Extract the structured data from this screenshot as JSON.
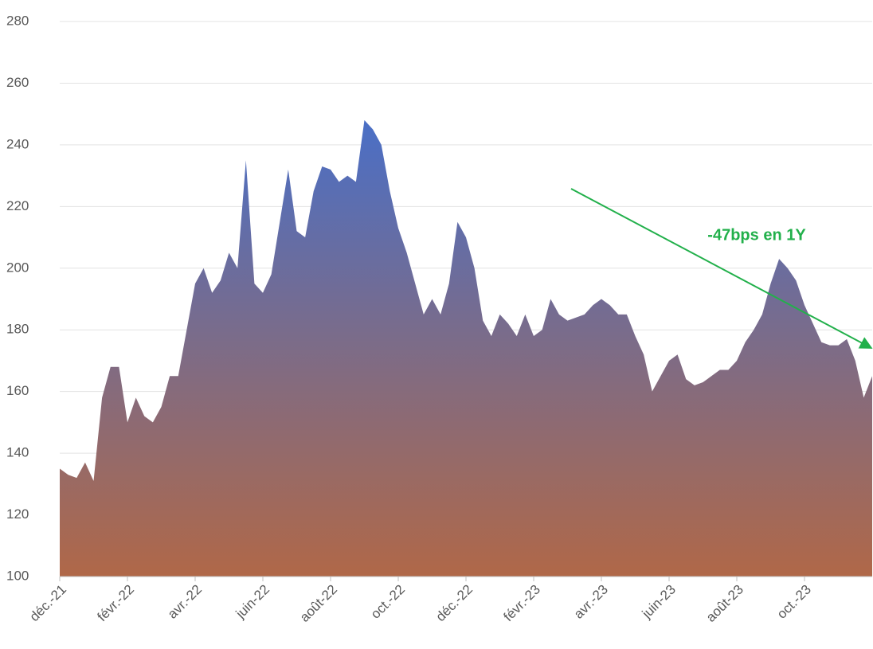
{
  "chart_data": {
    "type": "area",
    "categories": [
      "déc.-21",
      null,
      null,
      null,
      null,
      null,
      null,
      null,
      "févr.-22",
      null,
      null,
      null,
      null,
      null,
      null,
      null,
      "avr.-22",
      null,
      null,
      null,
      null,
      null,
      null,
      null,
      "juin-22",
      null,
      null,
      null,
      null,
      null,
      null,
      null,
      "août-22",
      null,
      null,
      null,
      null,
      null,
      null,
      null,
      "oct.-22",
      null,
      null,
      null,
      null,
      null,
      null,
      null,
      "déc.-22",
      null,
      null,
      null,
      null,
      null,
      null,
      null,
      "févr.-23",
      null,
      null,
      null,
      null,
      null,
      null,
      null,
      "avr.-23",
      null,
      null,
      null,
      null,
      null,
      null,
      null,
      "juin-23",
      null,
      null,
      null,
      null,
      null,
      null,
      null,
      "août-23",
      null,
      null,
      null,
      null,
      null,
      null,
      null,
      "oct.-23",
      null,
      null,
      null,
      null,
      null,
      null,
      null,
      null
    ],
    "values": [
      135,
      133,
      132,
      137,
      131,
      158,
      168,
      168,
      150,
      158,
      152,
      150,
      155,
      165,
      165,
      180,
      195,
      200,
      192,
      196,
      205,
      200,
      235,
      195,
      192,
      198,
      215,
      232,
      212,
      210,
      225,
      233,
      232,
      228,
      230,
      228,
      248,
      245,
      240,
      225,
      213,
      205,
      195,
      185,
      190,
      185,
      195,
      215,
      210,
      200,
      183,
      178,
      185,
      182,
      178,
      185,
      178,
      180,
      190,
      185,
      183,
      184,
      185,
      188,
      190,
      188,
      185,
      185,
      178,
      172,
      160,
      165,
      170,
      172,
      164,
      162,
      163,
      165,
      167,
      167,
      170,
      176,
      180,
      185,
      195,
      203,
      200,
      196,
      188,
      182,
      176,
      175,
      175,
      177,
      170,
      158,
      165
    ],
    "gradient_colors": [
      "#4a6fc6",
      "#b06848"
    ],
    "ylim": [
      100,
      280
    ],
    "yticks": [
      100,
      120,
      140,
      160,
      180,
      200,
      220,
      240,
      260,
      280
    ],
    "grid": true,
    "annotation": {
      "text": "-47bps en 1Y",
      "color": "#22b04b"
    }
  }
}
